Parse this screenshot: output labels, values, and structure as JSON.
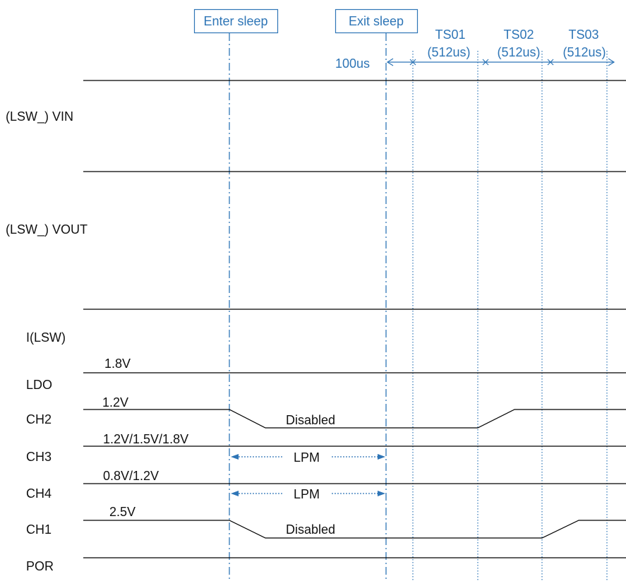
{
  "markers": {
    "enter_sleep": "Enter sleep",
    "exit_sleep": "Exit sleep"
  },
  "timing": {
    "delay": "100us",
    "slots": [
      {
        "name": "TS01",
        "duration": "(512us)"
      },
      {
        "name": "TS02",
        "duration": "(512us)"
      },
      {
        "name": "TS03",
        "duration": "(512us)"
      }
    ]
  },
  "signals": [
    {
      "name": "(LSW_) VIN"
    },
    {
      "name": "(LSW_) VOUT"
    },
    {
      "name": "I(LSW)"
    },
    {
      "name": "LDO",
      "level": "1.8V"
    },
    {
      "name": "CH2",
      "level": "1.2V",
      "state": "Disabled"
    },
    {
      "name": "CH3",
      "level": "1.2V/1.5V/1.8V",
      "state": "LPM"
    },
    {
      "name": "CH4",
      "level": "0.8V/1.2V",
      "state": "LPM"
    },
    {
      "name": "CH1",
      "level": "2.5V",
      "state": "Disabled"
    },
    {
      "name": "POR"
    }
  ],
  "colors": {
    "accent": "#2e75b6",
    "line": "#000000"
  }
}
